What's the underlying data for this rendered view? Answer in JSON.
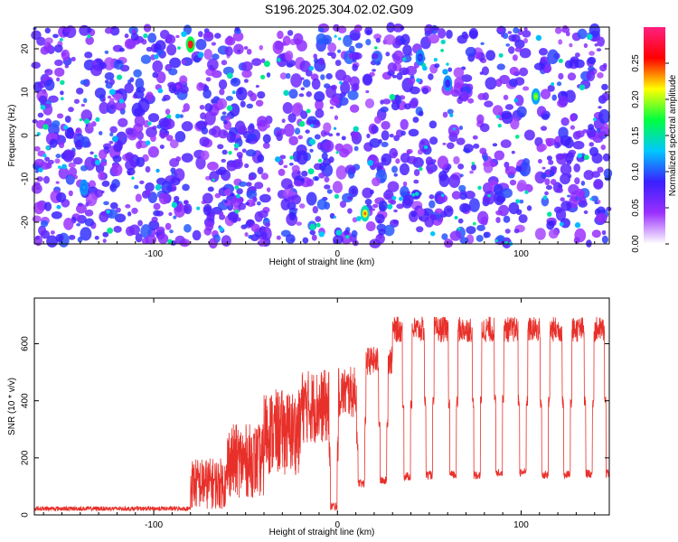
{
  "title": "S196.2025.304.02.02.G09",
  "colors": {
    "snr_line": "#e8302a",
    "background": "#ffffff",
    "colormap": [
      "#ffffff",
      "#9b30ff",
      "#3a1fff",
      "#00c8ff",
      "#00ff40",
      "#ffff00",
      "#ff0000",
      "#ff2080"
    ]
  },
  "chart_data": [
    {
      "type": "heatmap",
      "title": "S196.2025.304.02.02.G09",
      "xlabel": "Height of straight line (km)",
      "ylabel": "Frequency (Hz)",
      "xlim": [
        -165,
        148
      ],
      "ylim": [
        -25,
        25
      ],
      "xticks": [
        -100,
        0,
        100
      ],
      "yticks": [
        -20,
        -10,
        0,
        10,
        20
      ],
      "colorbar": {
        "label": "Normalized spectral amplitude",
        "range": [
          0,
          0.3
        ],
        "ticks": [
          0.0,
          0.05,
          0.1,
          0.15,
          0.2,
          0.25
        ],
        "tick_labels": [
          "0.00",
          "0.05",
          "0.10",
          "0.15",
          "0.20",
          "0.25"
        ]
      },
      "hotspots": [
        {
          "x": -80,
          "y": 21,
          "value": 0.28
        },
        {
          "x": 15,
          "y": -18,
          "value": 0.24
        },
        {
          "x": 108,
          "y": 9,
          "value": 0.2
        },
        {
          "x": -138,
          "y": -12,
          "value": 0.12
        },
        {
          "x": 45,
          "y": 18,
          "value": 0.1
        },
        {
          "x": 60,
          "y": 12,
          "value": 0.09
        }
      ],
      "vertical_gaps_x": [
        -79,
        -35,
        14,
        107
      ]
    },
    {
      "type": "line",
      "xlabel": "Height of straight line (km)",
      "ylabel": "SNR (10 * v/v)",
      "xlim": [
        -165,
        148
      ],
      "ylim": [
        0,
        760
      ],
      "xticks": [
        -100,
        0,
        100
      ],
      "yticks": [
        0,
        200,
        400,
        600
      ],
      "series": [
        {
          "name": "SNR",
          "segments": [
            {
              "x_start": -165,
              "x_end": -80,
              "level": 22,
              "noise": 8
            },
            {
              "x_start": -80,
              "x_end": -60,
              "level": 110,
              "noise": 90
            },
            {
              "x_start": -60,
              "x_end": -40,
              "level": 190,
              "noise": 130
            },
            {
              "x_start": -40,
              "x_end": -20,
              "level": 290,
              "noise": 150
            },
            {
              "x_start": -20,
              "x_end": 0,
              "level": 380,
              "noise": 130
            },
            {
              "x_start": 0,
              "x_end": 15,
              "level": 430,
              "noise": 90
            },
            {
              "x_start": 15,
              "x_end": 30,
              "level": 540,
              "noise": 50
            },
            {
              "x_start": 30,
              "x_end": 148,
              "level": 650,
              "noise": 45
            }
          ],
          "dips": [
            {
              "x": -2,
              "value": 30
            },
            {
              "x": 13,
              "value": 110
            },
            {
              "x": 25,
              "value": 120
            },
            {
              "x": 38,
              "value": 135
            },
            {
              "x": 50,
              "value": 140
            },
            {
              "x": 63,
              "value": 140
            },
            {
              "x": 76,
              "value": 140
            },
            {
              "x": 88,
              "value": 150
            },
            {
              "x": 101,
              "value": 150
            },
            {
              "x": 113,
              "value": 140
            },
            {
              "x": 125,
              "value": 140
            },
            {
              "x": 137,
              "value": 145
            },
            {
              "x": 148,
              "value": 145
            }
          ]
        }
      ]
    }
  ]
}
